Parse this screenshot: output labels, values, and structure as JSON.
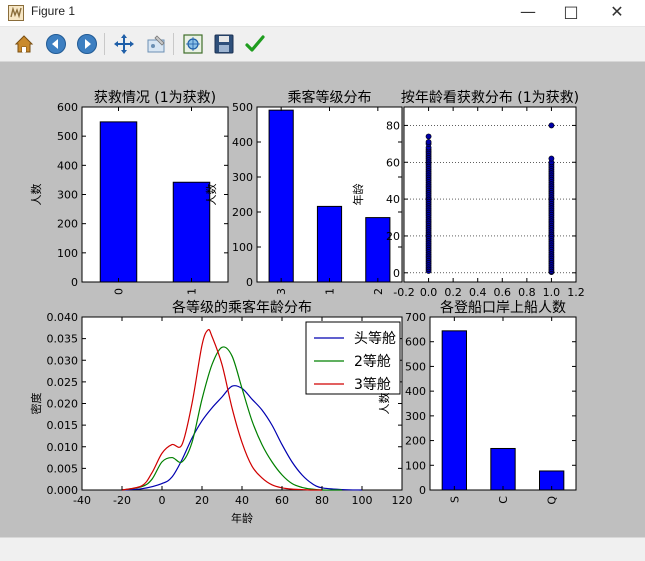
{
  "window": {
    "title": "Figure 1",
    "controls": {
      "minimize": "—",
      "maximize": "□",
      "close": "✕"
    }
  },
  "toolbar": {
    "icons": [
      "home-icon",
      "back-icon",
      "forward-icon",
      "pan-icon",
      "configure-subplots-icon",
      "zoom-rect-icon",
      "save-icon",
      "check-icon"
    ]
  },
  "colors": {
    "figure_bg": "#bfbfbf",
    "axes_bg": "#ffffff",
    "bar": "#0000ff",
    "line1": "#0000b0",
    "line2": "#008000",
    "line3": "#d00000",
    "scatter_fill": "#0000aa"
  },
  "chart_data": [
    {
      "type": "bar",
      "title": "获救情况 (1为获救)",
      "xlabel": "",
      "ylabel": "人数",
      "categories": [
        "0",
        "1"
      ],
      "values": [
        549,
        342
      ],
      "ylim": [
        0,
        600
      ],
      "yticks": [
        0,
        100,
        200,
        300,
        400,
        500,
        600
      ]
    },
    {
      "type": "bar",
      "title": "乘客等级分布",
      "xlabel": "",
      "ylabel": "人数",
      "categories": [
        "3",
        "1",
        "2"
      ],
      "values": [
        491,
        216,
        184
      ],
      "ylim": [
        0,
        500
      ],
      "yticks": [
        0,
        100,
        200,
        300,
        400,
        500
      ]
    },
    {
      "type": "scatter",
      "title": "按年龄看获救分布 (1为获救)",
      "xlabel": "",
      "ylabel": "年龄",
      "xlim": [
        -0.2,
        1.2
      ],
      "ylim": [
        -5,
        90
      ],
      "xticks": [
        -0.2,
        0.0,
        0.2,
        0.4,
        0.6,
        0.8,
        1.0,
        1.2
      ],
      "xtick_labels": [
        "-0.2",
        "0.0",
        "0.2",
        "0.4",
        "0.6",
        "0.8",
        "1.0",
        "1.2"
      ],
      "yticks": [
        0,
        20,
        40,
        60,
        80
      ],
      "grid": "y",
      "series": [
        {
          "x": 0,
          "y": [
            1,
            2,
            3,
            4,
            5,
            6,
            7,
            8,
            9,
            10,
            11,
            12,
            13,
            14,
            15,
            16,
            17,
            18,
            19,
            20,
            21,
            22,
            23,
            24,
            25,
            26,
            27,
            28,
            29,
            30,
            31,
            32,
            33,
            34,
            35,
            36,
            37,
            38,
            39,
            40,
            41,
            42,
            43,
            44,
            45,
            46,
            47,
            48,
            49,
            50,
            51,
            52,
            53,
            54,
            55,
            56,
            57,
            58,
            59,
            60,
            61,
            62,
            63,
            64,
            65,
            66,
            67,
            68,
            70,
            71,
            74
          ]
        },
        {
          "x": 1,
          "y": [
            0.4,
            1,
            2,
            3,
            4,
            5,
            6,
            7,
            8,
            9,
            10,
            11,
            12,
            13,
            14,
            15,
            16,
            17,
            18,
            19,
            20,
            21,
            22,
            23,
            24,
            25,
            26,
            27,
            28,
            29,
            30,
            31,
            32,
            33,
            34,
            35,
            36,
            37,
            38,
            39,
            40,
            41,
            42,
            43,
            44,
            45,
            46,
            47,
            48,
            49,
            50,
            51,
            52,
            53,
            54,
            55,
            56,
            57,
            58,
            59,
            60,
            62,
            80
          ]
        }
      ]
    },
    {
      "type": "line",
      "title": "各等级的乘客年龄分布",
      "xlabel": "年龄",
      "ylabel": "密度",
      "xlim": [
        -40,
        120
      ],
      "ylim": [
        0,
        0.04
      ],
      "xticks": [
        -40,
        -20,
        0,
        20,
        40,
        60,
        80,
        100,
        120
      ],
      "yticks": [
        0.0,
        0.005,
        0.01,
        0.015,
        0.02,
        0.025,
        0.03,
        0.035,
        0.04
      ],
      "ytick_labels": [
        "0.000",
        "0.005",
        "0.010",
        "0.015",
        "0.020",
        "0.025",
        "0.030",
        "0.035",
        "0.040"
      ],
      "legend_position": "top-right",
      "series": [
        {
          "name": "头等舱",
          "x": [
            -20,
            -10,
            0,
            5,
            10,
            15,
            20,
            25,
            30,
            35,
            40,
            45,
            50,
            55,
            60,
            65,
            70,
            75,
            80,
            90,
            100
          ],
          "y": [
            0.0,
            0.0003,
            0.0015,
            0.003,
            0.007,
            0.012,
            0.016,
            0.019,
            0.0215,
            0.024,
            0.0235,
            0.021,
            0.0185,
            0.015,
            0.0105,
            0.0065,
            0.0035,
            0.0015,
            0.0005,
            0.0001,
            0.0
          ]
        },
        {
          "name": "2等舱",
          "x": [
            -20,
            -10,
            -5,
            0,
            5,
            10,
            15,
            20,
            25,
            30,
            35,
            40,
            45,
            50,
            55,
            60,
            65,
            70,
            75,
            80,
            90
          ],
          "y": [
            0.0,
            0.0008,
            0.0025,
            0.0065,
            0.0075,
            0.0065,
            0.011,
            0.021,
            0.029,
            0.033,
            0.031,
            0.0235,
            0.016,
            0.0105,
            0.0065,
            0.0035,
            0.0015,
            0.0006,
            0.0002,
            0.0,
            0.0
          ]
        },
        {
          "name": "3等舱",
          "x": [
            -20,
            -10,
            -5,
            0,
            5,
            10,
            15,
            20,
            23,
            25,
            30,
            35,
            40,
            45,
            50,
            55,
            60,
            65,
            70,
            75,
            80
          ],
          "y": [
            0.0,
            0.001,
            0.004,
            0.0085,
            0.0105,
            0.0105,
            0.02,
            0.0335,
            0.037,
            0.0355,
            0.029,
            0.019,
            0.011,
            0.0055,
            0.0028,
            0.0012,
            0.0005,
            0.0002,
            0.0001,
            0.0,
            0.0
          ]
        }
      ]
    },
    {
      "type": "bar",
      "title": "各登船口岸上船人数",
      "xlabel": "",
      "ylabel": "人数",
      "categories": [
        "S",
        "C",
        "Q"
      ],
      "values": [
        644,
        168,
        77
      ],
      "ylim": [
        0,
        700
      ],
      "yticks": [
        0,
        100,
        200,
        300,
        400,
        500,
        600,
        700
      ]
    }
  ]
}
